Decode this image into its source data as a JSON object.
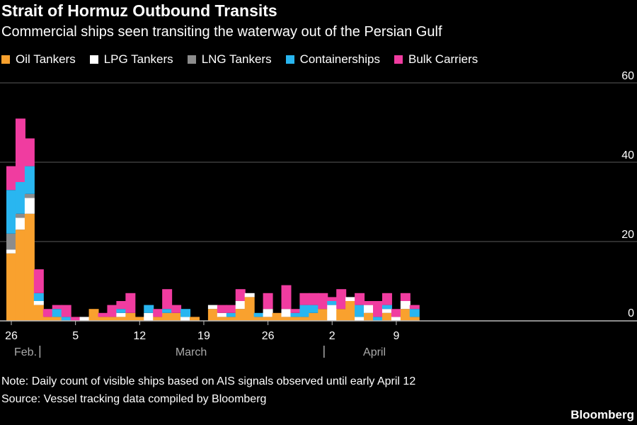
{
  "title": "Strait of Hormuz Outbound Transits",
  "subtitle": "Commercial ships seen transiting the waterway out of the Persian Gulf",
  "legend": [
    {
      "label": "Oil Tankers",
      "color": "#f9a12e"
    },
    {
      "label": "LPG Tankers",
      "color": "#ffffff"
    },
    {
      "label": "LNG Tankers",
      "color": "#8c8c8c"
    },
    {
      "label": "Containerships",
      "color": "#29b6f0"
    },
    {
      "label": "Bulk Carriers",
      "color": "#f03ca0"
    }
  ],
  "note": "Note: Daily count of visible ships based on AIS signals observed until early April 12",
  "source": "Source: Vessel tracking data compiled by Bloomberg",
  "brand": "Bloomberg",
  "chart_data": {
    "type": "bar",
    "stacked": true,
    "ylim": [
      0,
      60
    ],
    "yticks": [
      0,
      20,
      40,
      60
    ],
    "grid": true,
    "legend_position": "top-left",
    "x_tick_labels": [
      {
        "index": 0,
        "label": "26"
      },
      {
        "index": 7,
        "label": "5"
      },
      {
        "index": 14,
        "label": "12"
      },
      {
        "index": 21,
        "label": "19"
      },
      {
        "index": 28,
        "label": "26"
      },
      {
        "index": 35,
        "label": "2"
      },
      {
        "index": 42,
        "label": "9"
      }
    ],
    "month_labels": [
      {
        "index": 0,
        "label": "Feb."
      },
      {
        "index": 19,
        "label": "March"
      },
      {
        "index": 39,
        "label": "April"
      }
    ],
    "month_separators": [
      3,
      34
    ],
    "categories": [
      "Feb 26",
      "Feb 27",
      "Feb 28",
      "Mar 1",
      "Mar 2",
      "Mar 3",
      "Mar 4",
      "Mar 5",
      "Mar 6",
      "Mar 7",
      "Mar 8",
      "Mar 9",
      "Mar 10",
      "Mar 11",
      "Mar 12",
      "Mar 13",
      "Mar 14",
      "Mar 15",
      "Mar 16",
      "Mar 17",
      "Mar 18",
      "Mar 19",
      "Mar 20",
      "Mar 21",
      "Mar 22",
      "Mar 23",
      "Mar 24",
      "Mar 25",
      "Mar 26",
      "Mar 27",
      "Mar 28",
      "Mar 29",
      "Mar 30",
      "Mar 31",
      "Apr 1",
      "Apr 2",
      "Apr 3",
      "Apr 4",
      "Apr 5",
      "Apr 6",
      "Apr 7",
      "Apr 8",
      "Apr 9",
      "Apr 10",
      "Apr 11"
    ],
    "series": [
      {
        "name": "Oil Tankers",
        "color": "#f9a12e",
        "values": [
          17,
          23,
          27,
          4,
          1,
          1,
          0,
          0,
          0,
          3,
          1,
          1,
          1,
          2,
          1,
          0,
          1,
          2,
          2,
          0,
          1,
          0,
          3,
          1,
          1,
          3,
          6,
          1,
          1,
          2,
          1,
          1,
          1,
          2,
          3,
          0,
          3,
          5,
          0,
          2,
          0,
          2,
          0,
          3,
          1
        ]
      },
      {
        "name": "LPG Tankers",
        "color": "#ffffff",
        "values": [
          1,
          3,
          4,
          1,
          0,
          0,
          0,
          0,
          1,
          0,
          0,
          0,
          1,
          0,
          0,
          2,
          0,
          0,
          0,
          1,
          0,
          0,
          1,
          1,
          0,
          2,
          1,
          0,
          2,
          0,
          2,
          0,
          0,
          0,
          0,
          4,
          0,
          1,
          1,
          2,
          0,
          1,
          1,
          2,
          0
        ]
      },
      {
        "name": "LNG Tankers",
        "color": "#8c8c8c",
        "values": [
          4,
          1,
          1,
          0,
          0,
          0,
          0,
          0,
          0,
          0,
          0,
          0,
          0,
          0,
          0,
          0,
          0,
          0,
          0,
          0,
          0,
          0,
          0,
          0,
          0,
          0,
          0,
          0,
          0,
          0,
          0,
          0,
          0,
          0,
          0,
          0,
          0,
          0,
          0,
          0,
          0,
          0,
          0,
          0,
          0
        ]
      },
      {
        "name": "Containerships",
        "color": "#29b6f0",
        "values": [
          11,
          8,
          7,
          2,
          0,
          2,
          1,
          0,
          0,
          0,
          0,
          0,
          1,
          0,
          0,
          2,
          0,
          1,
          0,
          2,
          0,
          0,
          0,
          0,
          1,
          0,
          0,
          1,
          0,
          0,
          0,
          1,
          3,
          2,
          0,
          1,
          0,
          0,
          3,
          0,
          1,
          1,
          0,
          0,
          2
        ]
      },
      {
        "name": "Bulk Carriers",
        "color": "#f03ca0",
        "values": [
          6,
          16,
          7,
          6,
          2,
          1,
          3,
          1,
          0,
          0,
          1,
          3,
          2,
          5,
          0,
          0,
          2,
          5,
          2,
          0,
          0,
          0,
          0,
          2,
          2,
          3,
          0,
          0,
          4,
          0,
          6,
          1,
          3,
          3,
          4,
          1,
          5,
          0,
          3,
          1,
          4,
          3,
          2,
          2,
          1
        ]
      }
    ]
  }
}
